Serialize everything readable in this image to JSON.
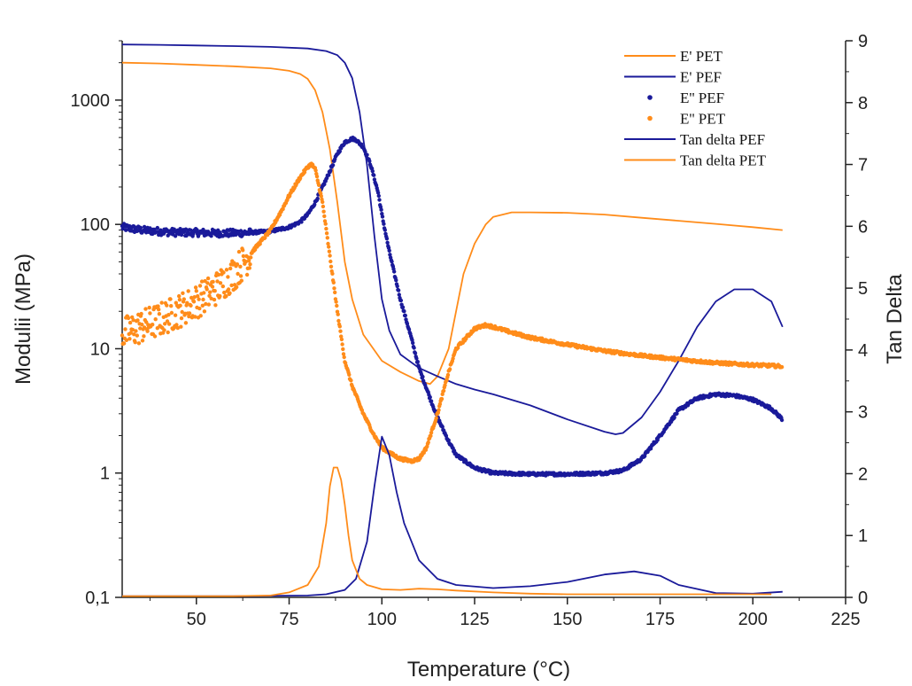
{
  "chart_data": {
    "type": "line",
    "xlabel": "Temperature (°C)",
    "ylabel_left": "Modulii (MPa)",
    "ylabel_right": "Tan Delta",
    "xlim": [
      30,
      225
    ],
    "ylim_left": [
      0.1,
      3000
    ],
    "yscale_left": "log",
    "ylim_right": [
      0,
      9
    ],
    "x_ticks": [
      "50",
      "75",
      "100",
      "125",
      "150",
      "175",
      "200",
      "225"
    ],
    "y_left_ticks": [
      "0,1",
      "1",
      "10",
      "100",
      "1000"
    ],
    "y_right_ticks": [
      "0",
      "1",
      "2",
      "3",
      "4",
      "5",
      "6",
      "7",
      "8",
      "9"
    ],
    "legend_position": "top-right",
    "colors": {
      "PET": "#ff8c1a",
      "PEF": "#1a1a9a"
    },
    "series": [
      {
        "name": "E' PET",
        "axis": "left",
        "style": "thin-line",
        "color": "#ff8c1a",
        "x": [
          30,
          40,
          50,
          60,
          70,
          75,
          78,
          80,
          82,
          84,
          86,
          88,
          90,
          92,
          95,
          100,
          105,
          110,
          113,
          115,
          118,
          120,
          122,
          125,
          128,
          130,
          135,
          140,
          150,
          160,
          170,
          180,
          190,
          200,
          208
        ],
        "y": [
          2000,
          1970,
          1920,
          1870,
          1800,
          1720,
          1620,
          1480,
          1200,
          800,
          400,
          150,
          50,
          25,
          13,
          8,
          6.5,
          5.5,
          5.2,
          6,
          10,
          20,
          40,
          70,
          100,
          115,
          125,
          125,
          124,
          120,
          113,
          107,
          101,
          95,
          90
        ]
      },
      {
        "name": "E' PEF",
        "axis": "left",
        "style": "thin-line",
        "color": "#1a1a9a",
        "x": [
          30,
          40,
          50,
          60,
          70,
          80,
          85,
          88,
          90,
          92,
          94,
          96,
          98,
          100,
          102,
          105,
          110,
          115,
          120,
          125,
          130,
          140,
          150,
          160,
          163,
          165,
          170,
          175,
          180,
          185,
          190,
          195,
          200,
          205,
          208
        ],
        "y": [
          2800,
          2780,
          2750,
          2720,
          2680,
          2600,
          2480,
          2300,
          2000,
          1500,
          800,
          300,
          80,
          25,
          14,
          9,
          7,
          6,
          5.2,
          4.7,
          4.3,
          3.5,
          2.7,
          2.15,
          2.05,
          2.1,
          2.8,
          4.5,
          8,
          15,
          24,
          30,
          30,
          24,
          15
        ]
      },
      {
        "name": "E'' PEF",
        "axis": "left",
        "style": "dots",
        "color": "#1a1a9a",
        "x": [
          30,
          35,
          40,
          45,
          50,
          55,
          60,
          65,
          70,
          75,
          78,
          80,
          82,
          85,
          88,
          90,
          92,
          93,
          95,
          97,
          99,
          100,
          102,
          105,
          108,
          110,
          113,
          115,
          118,
          120,
          125,
          130,
          140,
          150,
          160,
          165,
          170,
          175,
          180,
          185,
          190,
          195,
          200,
          205,
          208
        ],
        "y": [
          95,
          90,
          88,
          86,
          86,
          85,
          85,
          86,
          88,
          95,
          105,
          120,
          150,
          230,
          370,
          460,
          490,
          480,
          420,
          300,
          180,
          120,
          60,
          25,
          12,
          7,
          4,
          2.8,
          1.8,
          1.4,
          1.1,
          1.0,
          0.98,
          0.98,
          1.0,
          1.05,
          1.3,
          2.0,
          3.2,
          4.0,
          4.3,
          4.2,
          3.9,
          3.3,
          2.7
        ]
      },
      {
        "name": "E'' PET",
        "axis": "left",
        "style": "dots",
        "color": "#ff8c1a",
        "x": [
          30,
          35,
          40,
          45,
          50,
          55,
          60,
          65,
          70,
          73,
          75,
          78,
          80,
          81,
          82,
          84,
          86,
          88,
          90,
          92,
          95,
          98,
          100,
          103,
          105,
          108,
          110,
          112,
          115,
          118,
          120,
          125,
          128,
          130,
          135,
          140,
          150,
          160,
          170,
          180,
          190,
          200,
          205,
          208
        ],
        "y": [
          13,
          15,
          17,
          20,
          24,
          30,
          40,
          60,
          90,
          130,
          170,
          240,
          290,
          305,
          280,
          150,
          55,
          20,
          8,
          5,
          3,
          2,
          1.6,
          1.4,
          1.3,
          1.25,
          1.3,
          1.6,
          3,
          6.5,
          10,
          14.5,
          15.5,
          15,
          13.5,
          12.3,
          10.8,
          9.6,
          8.8,
          8.2,
          7.7,
          7.4,
          7.3,
          7.2
        ]
      },
      {
        "name": "Tan delta PEF",
        "axis": "right",
        "style": "thin-line",
        "color": "#1a1a9a",
        "x": [
          30,
          60,
          80,
          85,
          90,
          93,
          96,
          98,
          100,
          102,
          104,
          106,
          110,
          115,
          120,
          130,
          140,
          150,
          160,
          168,
          175,
          180,
          190,
          200,
          208
        ],
        "y": [
          0.02,
          0.02,
          0.03,
          0.05,
          0.12,
          0.3,
          0.9,
          1.8,
          2.6,
          2.3,
          1.7,
          1.2,
          0.6,
          0.3,
          0.2,
          0.15,
          0.18,
          0.25,
          0.37,
          0.42,
          0.35,
          0.2,
          0.07,
          0.06,
          0.09
        ]
      },
      {
        "name": "Tan delta PET",
        "axis": "right",
        "style": "thin-line",
        "color": "#ff8c1a",
        "x": [
          30,
          60,
          70,
          75,
          80,
          83,
          85,
          86,
          87,
          88,
          89,
          90,
          91,
          92,
          94,
          96,
          100,
          105,
          110,
          115,
          120,
          130,
          140,
          150,
          170,
          190,
          205
        ],
        "y": [
          0.02,
          0.02,
          0.03,
          0.08,
          0.2,
          0.5,
          1.2,
          1.8,
          2.1,
          2.1,
          1.9,
          1.5,
          1.0,
          0.6,
          0.3,
          0.2,
          0.13,
          0.12,
          0.14,
          0.13,
          0.11,
          0.08,
          0.06,
          0.05,
          0.05,
          0.05,
          0.05
        ]
      }
    ]
  }
}
